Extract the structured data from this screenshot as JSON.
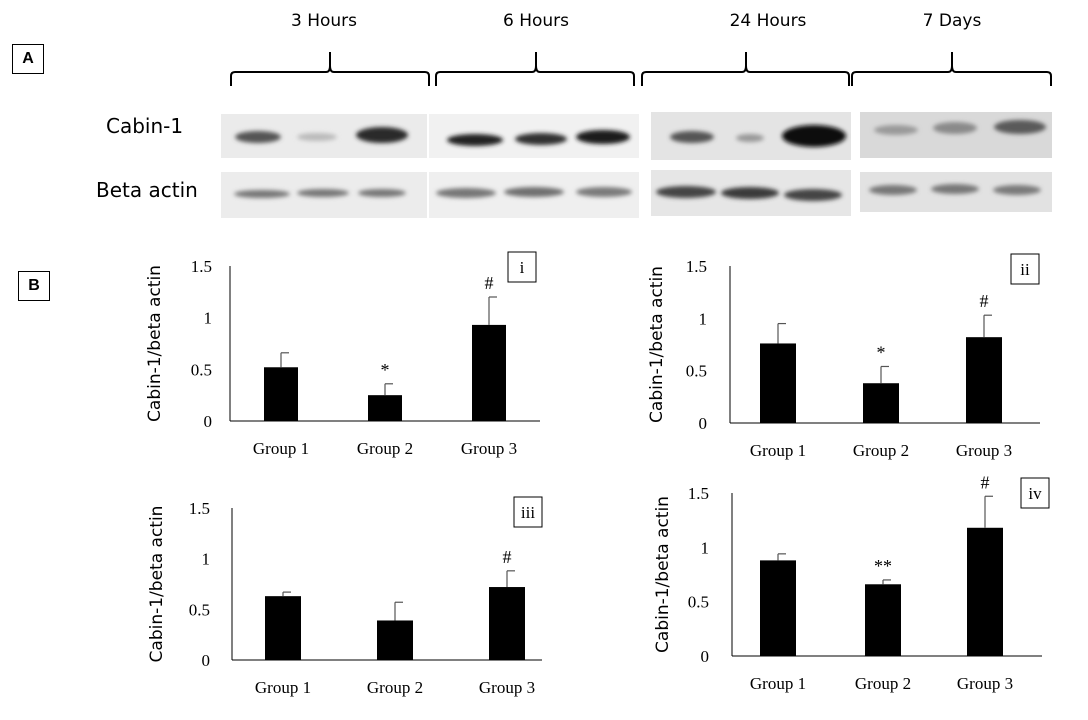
{
  "panel_a": {
    "label": "A",
    "time_points": [
      "3 Hours",
      "6 Hours",
      "24 Hours",
      "7 Days"
    ],
    "blot_rows": [
      "Cabin-1",
      "Beta actin"
    ]
  },
  "panel_b": {
    "label": "B"
  },
  "chart_data": [
    {
      "type": "bar",
      "panel": "i",
      "title": "",
      "xlabel": "",
      "ylabel": "Cabin-1/beta actin",
      "categories": [
        "Group 1",
        "Group 2",
        "Group 3"
      ],
      "values": [
        0.52,
        0.25,
        0.93
      ],
      "errors": [
        0.14,
        0.11,
        0.27
      ],
      "annotations": [
        "",
        "*",
        "#"
      ],
      "ylim": [
        0,
        1.5
      ],
      "yticks": [
        "0",
        "0.5",
        "1",
        "1.5"
      ]
    },
    {
      "type": "bar",
      "panel": "ii",
      "title": "",
      "xlabel": "",
      "ylabel": "Cabin-1/beta actin",
      "categories": [
        "Group 1",
        "Group 2",
        "Group 3"
      ],
      "values": [
        0.76,
        0.38,
        0.82
      ],
      "errors": [
        0.19,
        0.16,
        0.21
      ],
      "annotations": [
        "",
        "*",
        "#"
      ],
      "ylim": [
        0,
        1.5
      ],
      "yticks": [
        "0",
        "0.5",
        "1",
        "1.5"
      ]
    },
    {
      "type": "bar",
      "panel": "iii",
      "title": "",
      "xlabel": "",
      "ylabel": "Cabin-1/beta actin",
      "categories": [
        "Group 1",
        "Group 2",
        "Group 3"
      ],
      "values": [
        0.63,
        0.39,
        0.72
      ],
      "errors": [
        0.04,
        0.18,
        0.16
      ],
      "annotations": [
        "",
        "",
        "#"
      ],
      "ylim": [
        0,
        1.5
      ],
      "yticks": [
        "0",
        "0.5",
        "1",
        "1.5"
      ]
    },
    {
      "type": "bar",
      "panel": "iv",
      "title": "",
      "xlabel": "",
      "ylabel": "Cabin-1/beta actin",
      "categories": [
        "Group 1",
        "Group 2",
        "Group 3"
      ],
      "values": [
        0.88,
        0.66,
        1.18
      ],
      "errors": [
        0.06,
        0.04,
        0.29
      ],
      "annotations": [
        "",
        "**",
        "#"
      ],
      "ylim": [
        0,
        1.5
      ],
      "yticks": [
        "0",
        "0.5",
        "1",
        "1.5"
      ]
    }
  ]
}
